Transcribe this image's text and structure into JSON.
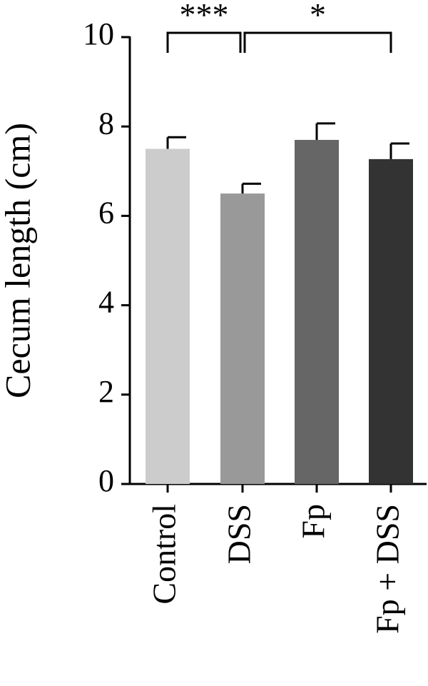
{
  "chart_data": {
    "type": "bar",
    "categories": [
      "Control",
      "DSS",
      "Fp",
      "Fp + DSS"
    ],
    "values": [
      7.5,
      6.5,
      7.7,
      7.27
    ],
    "errors": [
      0.26,
      0.22,
      0.37,
      0.35
    ],
    "colors": [
      "#cccccc",
      "#999999",
      "#666666",
      "#333333"
    ],
    "ylabel": "Cecum length (cm)",
    "xlabel": "",
    "ylim": [
      0,
      10
    ],
    "yticks": [
      0,
      2,
      4,
      6,
      8,
      10
    ],
    "grid": false,
    "significance": [
      {
        "from": "Control",
        "to": "DSS",
        "label": "***"
      },
      {
        "from": "DSS",
        "to": "Fp + DSS",
        "label": "*"
      }
    ]
  }
}
